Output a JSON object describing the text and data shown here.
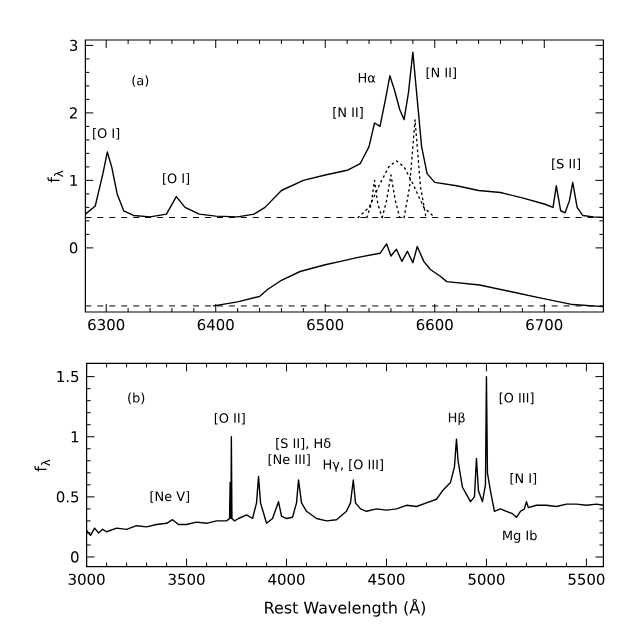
{
  "chart_data": [
    {
      "type": "line",
      "ylabel": "f$_{λ}$",
      "xlim": [
        6281,
        6754
      ],
      "ylim": [
        -0.95,
        3.08
      ],
      "xticks": [
        6300,
        6400,
        6500,
        6600,
        6700
      ],
      "yticks": [
        0,
        1,
        2,
        3
      ],
      "grid": false,
      "marker": "none",
      "series": [
        {
          "color": "#000000",
          "line_style": "solid",
          "x": [
            6281,
            6290,
            6297,
            6301,
            6305,
            6310,
            6316,
            6325,
            6340,
            6355,
            6364,
            6372,
            6385,
            6400,
            6420,
            6435,
            6445,
            6460,
            6480,
            6500,
            6520,
            6532,
            6540,
            6545,
            6550,
            6555,
            6559,
            6563,
            6568,
            6572,
            6576,
            6580,
            6584,
            6588,
            6593,
            6600,
            6620,
            6640,
            6660,
            6680,
            6700,
            6708,
            6711,
            6715,
            6719,
            6723,
            6726,
            6730,
            6735,
            6745,
            6754
          ],
          "values": [
            0.5,
            0.62,
            1.1,
            1.42,
            1.2,
            0.8,
            0.55,
            0.48,
            0.46,
            0.5,
            0.76,
            0.6,
            0.5,
            0.47,
            0.46,
            0.5,
            0.6,
            0.85,
            1.0,
            1.08,
            1.15,
            1.25,
            1.5,
            1.85,
            1.8,
            2.2,
            2.55,
            2.35,
            2.05,
            1.9,
            2.3,
            2.9,
            2.2,
            1.5,
            1.1,
            0.97,
            0.92,
            0.85,
            0.82,
            0.74,
            0.65,
            0.6,
            0.92,
            0.55,
            0.52,
            0.7,
            0.97,
            0.6,
            0.48,
            0.46,
            0.45
          ]
        },
        {
          "color": "#000000",
          "line_style": "dotted",
          "x": [
            6530,
            6540,
            6550,
            6558,
            6565,
            6572,
            6580,
            6590,
            6600
          ],
          "values": [
            0.45,
            0.6,
            0.95,
            1.2,
            1.29,
            1.2,
            0.95,
            0.6,
            0.45
          ]
        },
        {
          "color": "#000000",
          "line_style": "dotted",
          "x": [
            6538,
            6542,
            6545,
            6548,
            6552
          ],
          "values": [
            0.45,
            0.65,
            1.0,
            0.65,
            0.45
          ]
        },
        {
          "color": "#000000",
          "line_style": "dotted",
          "x": [
            6552,
            6556,
            6560,
            6564,
            6568
          ],
          "values": [
            0.45,
            0.7,
            1.08,
            0.7,
            0.45
          ]
        },
        {
          "color": "#000000",
          "line_style": "dotted",
          "x": [
            6572,
            6577,
            6582,
            6587,
            6592
          ],
          "values": [
            0.45,
            0.9,
            1.9,
            0.9,
            0.45
          ]
        },
        {
          "color": "#000000",
          "line_style": "solid",
          "x": [
            6398,
            6420,
            6440,
            6447,
            6460,
            6477,
            6500,
            6514,
            6530,
            6550,
            6556,
            6560,
            6565,
            6570,
            6575,
            6580,
            6584,
            6590,
            6596,
            6605,
            6611,
            6641,
            6670,
            6696,
            6726,
            6754
          ],
          "values": [
            -0.86,
            -0.8,
            -0.72,
            -0.62,
            -0.48,
            -0.35,
            -0.25,
            -0.2,
            -0.14,
            -0.08,
            0.06,
            -0.12,
            -0.02,
            -0.2,
            -0.05,
            -0.22,
            0.02,
            -0.2,
            -0.32,
            -0.42,
            -0.5,
            -0.55,
            -0.65,
            -0.74,
            -0.84,
            -0.87
          ]
        }
      ],
      "ref_lines": [
        {
          "axis": "y",
          "value": 0.45,
          "color": "#000000",
          "line_style": "dashed"
        },
        {
          "axis": "y",
          "value": -0.86,
          "color": "#000000",
          "line_style": "dashed"
        }
      ],
      "annotations": [
        "(a)",
        "[O I]",
        "[O I]",
        "[N II]",
        "Hα",
        "[N II]",
        "[S II]"
      ]
    },
    {
      "type": "line",
      "xlabel": "Rest Wavelength (Å)",
      "ylabel": "f$_{λ}$",
      "xlim": [
        3000,
        5585
      ],
      "ylim": [
        -0.08,
        1.61
      ],
      "xticks": [
        3000,
        3500,
        4000,
        4500,
        5000,
        5500
      ],
      "yticks": [
        0,
        0.5,
        1,
        1.5
      ],
      "grid": false,
      "marker": "none",
      "series": [
        {
          "color": "#000000",
          "line_style": "solid",
          "x": [
            3000,
            3020,
            3040,
            3060,
            3080,
            3100,
            3150,
            3200,
            3250,
            3300,
            3350,
            3400,
            3430,
            3460,
            3500,
            3550,
            3600,
            3650,
            3700,
            3715,
            3718,
            3722,
            3724,
            3727,
            3740,
            3760,
            3800,
            3830,
            3850,
            3860,
            3870,
            3900,
            3930,
            3960,
            3975,
            4000,
            4030,
            4050,
            4060,
            4075,
            4100,
            4150,
            4200,
            4250,
            4300,
            4320,
            4334,
            4345,
            4370,
            4400,
            4450,
            4500,
            4550,
            4600,
            4650,
            4700,
            4750,
            4780,
            4820,
            4840,
            4850,
            4858,
            4880,
            4900,
            4920,
            4940,
            4950,
            4960,
            4980,
            4995,
            5000,
            5005,
            5020,
            5040,
            5070,
            5100,
            5130,
            5150,
            5170,
            5190,
            5200,
            5210,
            5250,
            5300,
            5350,
            5400,
            5450,
            5500,
            5550,
            5585
          ],
          "values": [
            0.22,
            0.18,
            0.24,
            0.2,
            0.23,
            0.21,
            0.24,
            0.23,
            0.26,
            0.25,
            0.27,
            0.28,
            0.31,
            0.27,
            0.27,
            0.29,
            0.28,
            0.3,
            0.3,
            0.32,
            0.62,
            0.32,
            1.0,
            0.32,
            0.3,
            0.32,
            0.35,
            0.32,
            0.45,
            0.67,
            0.45,
            0.28,
            0.32,
            0.46,
            0.34,
            0.32,
            0.33,
            0.45,
            0.64,
            0.45,
            0.38,
            0.32,
            0.3,
            0.31,
            0.38,
            0.45,
            0.64,
            0.45,
            0.4,
            0.38,
            0.4,
            0.39,
            0.4,
            0.43,
            0.42,
            0.45,
            0.48,
            0.55,
            0.62,
            0.75,
            0.98,
            0.8,
            0.58,
            0.52,
            0.46,
            0.5,
            0.82,
            0.55,
            0.46,
            0.6,
            1.5,
            0.7,
            0.55,
            0.38,
            0.4,
            0.38,
            0.36,
            0.33,
            0.38,
            0.4,
            0.46,
            0.41,
            0.43,
            0.43,
            0.42,
            0.44,
            0.44,
            0.43,
            0.44,
            0.43
          ]
        }
      ],
      "annotations": [
        "(b)",
        "[Ne V]",
        "[O II]",
        "[Ne III]",
        "[S II], Hδ",
        "Hγ, [O III]",
        "Hβ",
        "[O III]",
        "[N I]",
        "Mg Ib"
      ]
    }
  ]
}
